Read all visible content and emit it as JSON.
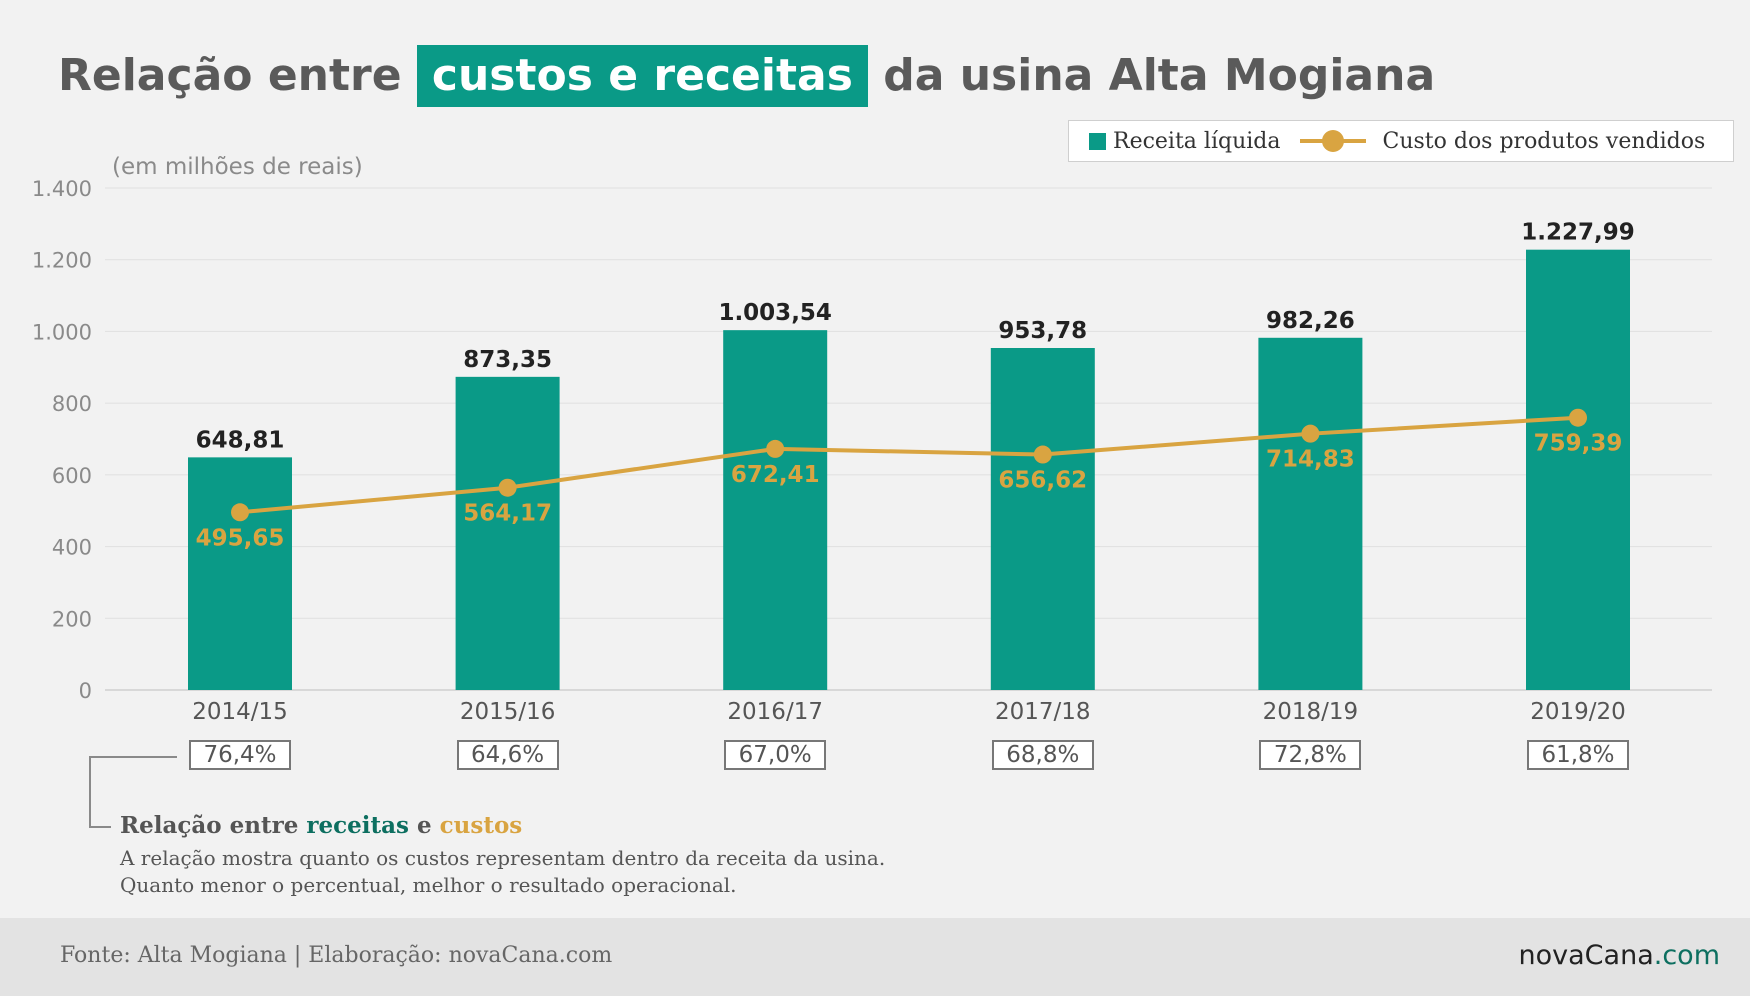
{
  "title": {
    "before": "Relação entre",
    "highlight": "custos e receitas",
    "after": "da usina Alta Mogiana"
  },
  "unit_note": "(em milhões de reais)",
  "legend": {
    "bar_label": "Receita líquida",
    "line_label": "Custo dos produtos vendidos"
  },
  "colors": {
    "bar": "#0a9a87",
    "line": "#d9a441",
    "title_highlight": "#0a9a87",
    "receitas_text": "#0d6f60",
    "custos_text": "#d9a441"
  },
  "chart_data": {
    "type": "bar",
    "categories": [
      "2014/15",
      "2015/16",
      "2016/17",
      "2017/18",
      "2018/19",
      "2019/20"
    ],
    "series": [
      {
        "name": "Receita líquida",
        "type": "bar",
        "values": [
          648.81,
          873.35,
          1003.54,
          953.78,
          982.26,
          1227.99
        ],
        "labels": [
          "648,81",
          "873,35",
          "1.003,54",
          "953,78",
          "982,26",
          "1.227,99"
        ]
      },
      {
        "name": "Custo dos produtos vendidos",
        "type": "line",
        "values": [
          495.65,
          564.17,
          672.41,
          656.62,
          714.83,
          759.39
        ],
        "labels": [
          "495,65",
          "564,17",
          "672,41",
          "656,62",
          "714,83",
          "759,39"
        ]
      }
    ],
    "ylim": [
      0,
      1400
    ],
    "yticks": [
      0,
      200,
      400,
      600,
      800,
      1000,
      1200,
      1400
    ],
    "ytick_labels": [
      "0",
      "200",
      "400",
      "600",
      "800",
      "1.000",
      "1.200",
      "1.400"
    ],
    "grid": true,
    "legend_position": "top-right"
  },
  "ratios": [
    "76,4%",
    "64,6%",
    "67,0%",
    "68,8%",
    "72,8%",
    "61,8%"
  ],
  "note": {
    "title_prefix": "Relação entre",
    "title_receitas": "receitas",
    "title_e": "e",
    "title_custos": "custos",
    "line1": "A relação mostra quanto os custos representam dentro da receita da usina.",
    "line2": "Quanto menor o percentual, melhor o resultado operacional."
  },
  "footer": {
    "source": "Fonte: Alta Mogiana | Elaboração: novaCana.com",
    "brand_main": "novaCana",
    "brand_suffix": ".com"
  }
}
